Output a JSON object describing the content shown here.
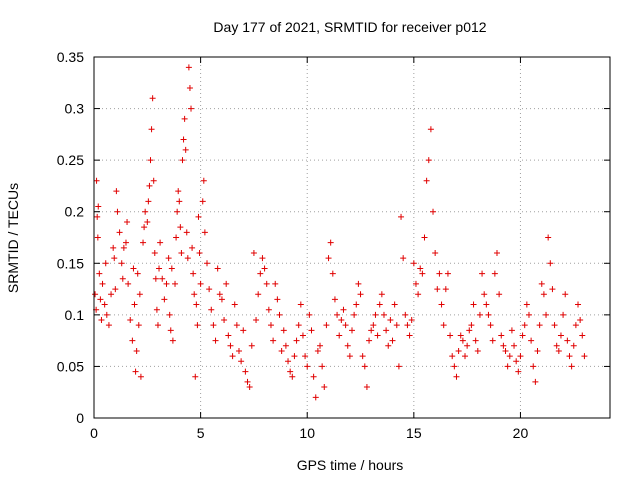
{
  "chart_data": {
    "type": "scatter",
    "title": "Day 177 of 2021, SRMTID for receiver p012",
    "xlabel": "GPS time / hours",
    "ylabel": "SRMTID / TECUs",
    "xlim": [
      0,
      24.2
    ],
    "ylim": [
      0,
      0.35
    ],
    "xticks": [
      0,
      5,
      10,
      15,
      20
    ],
    "xtick_labels": [
      "0",
      "5",
      "10",
      "15",
      "20"
    ],
    "yticks": [
      0,
      0.05,
      0.1,
      0.15,
      0.2,
      0.25,
      0.3,
      0.35
    ],
    "ytick_labels": [
      "0",
      "0.05",
      "0.1",
      "0.15",
      "0.2",
      "0.25",
      "0.3",
      "0.35"
    ],
    "grid": true,
    "marker": "+",
    "color": "#e00000",
    "series": [
      {
        "name": "SRMTID",
        "points": [
          [
            0.05,
            0.12
          ],
          [
            0.1,
            0.105
          ],
          [
            0.12,
            0.23
          ],
          [
            0.15,
            0.195
          ],
          [
            0.18,
            0.175
          ],
          [
            0.2,
            0.205
          ],
          [
            0.25,
            0.14
          ],
          [
            0.3,
            0.115
          ],
          [
            0.35,
            0.095
          ],
          [
            0.4,
            0.13
          ],
          [
            0.5,
            0.11
          ],
          [
            0.55,
            0.15
          ],
          [
            0.6,
            0.1
          ],
          [
            0.7,
            0.09
          ],
          [
            0.8,
            0.12
          ],
          [
            0.9,
            0.165
          ],
          [
            0.95,
            0.155
          ],
          [
            1.0,
            0.125
          ],
          [
            1.05,
            0.22
          ],
          [
            1.1,
            0.2
          ],
          [
            1.2,
            0.18
          ],
          [
            1.3,
            0.15
          ],
          [
            1.35,
            0.135
          ],
          [
            1.4,
            0.165
          ],
          [
            1.5,
            0.17
          ],
          [
            1.55,
            0.19
          ],
          [
            1.6,
            0.13
          ],
          [
            1.7,
            0.095
          ],
          [
            1.8,
            0.075
          ],
          [
            1.85,
            0.145
          ],
          [
            1.9,
            0.11
          ],
          [
            1.95,
            0.045
          ],
          [
            2.0,
            0.065
          ],
          [
            2.05,
            0.14
          ],
          [
            2.1,
            0.09
          ],
          [
            2.15,
            0.12
          ],
          [
            2.2,
            0.04
          ],
          [
            2.3,
            0.17
          ],
          [
            2.35,
            0.185
          ],
          [
            2.4,
            0.2
          ],
          [
            2.5,
            0.19
          ],
          [
            2.55,
            0.21
          ],
          [
            2.6,
            0.225
          ],
          [
            2.65,
            0.25
          ],
          [
            2.7,
            0.28
          ],
          [
            2.75,
            0.31
          ],
          [
            2.8,
            0.23
          ],
          [
            2.85,
            0.16
          ],
          [
            2.9,
            0.135
          ],
          [
            2.95,
            0.105
          ],
          [
            3.0,
            0.09
          ],
          [
            3.05,
            0.145
          ],
          [
            3.1,
            0.17
          ],
          [
            3.2,
            0.135
          ],
          [
            3.3,
            0.115
          ],
          [
            3.4,
            0.13
          ],
          [
            3.5,
            0.155
          ],
          [
            3.55,
            0.1
          ],
          [
            3.6,
            0.085
          ],
          [
            3.65,
            0.145
          ],
          [
            3.7,
            0.075
          ],
          [
            3.8,
            0.13
          ],
          [
            3.85,
            0.175
          ],
          [
            3.9,
            0.2
          ],
          [
            3.95,
            0.22
          ],
          [
            4.0,
            0.21
          ],
          [
            4.05,
            0.185
          ],
          [
            4.1,
            0.16
          ],
          [
            4.15,
            0.25
          ],
          [
            4.2,
            0.27
          ],
          [
            4.25,
            0.29
          ],
          [
            4.3,
            0.26
          ],
          [
            4.35,
            0.18
          ],
          [
            4.4,
            0.155
          ],
          [
            4.45,
            0.34
          ],
          [
            4.5,
            0.32
          ],
          [
            4.55,
            0.3
          ],
          [
            4.6,
            0.165
          ],
          [
            4.65,
            0.14
          ],
          [
            4.7,
            0.12
          ],
          [
            4.75,
            0.04
          ],
          [
            4.8,
            0.11
          ],
          [
            4.85,
            0.09
          ],
          [
            4.9,
            0.195
          ],
          [
            4.95,
            0.16
          ],
          [
            5.0,
            0.13
          ],
          [
            5.1,
            0.21
          ],
          [
            5.15,
            0.23
          ],
          [
            5.2,
            0.18
          ],
          [
            5.3,
            0.15
          ],
          [
            5.4,
            0.125
          ],
          [
            5.5,
            0.105
          ],
          [
            5.6,
            0.09
          ],
          [
            5.7,
            0.075
          ],
          [
            5.8,
            0.145
          ],
          [
            5.9,
            0.12
          ],
          [
            6.0,
            0.115
          ],
          [
            6.1,
            0.095
          ],
          [
            6.2,
            0.13
          ],
          [
            6.3,
            0.08
          ],
          [
            6.4,
            0.07
          ],
          [
            6.5,
            0.06
          ],
          [
            6.6,
            0.11
          ],
          [
            6.7,
            0.09
          ],
          [
            6.8,
            0.065
          ],
          [
            6.9,
            0.055
          ],
          [
            7.0,
            0.085
          ],
          [
            7.1,
            0.045
          ],
          [
            7.2,
            0.035
          ],
          [
            7.3,
            0.03
          ],
          [
            7.4,
            0.07
          ],
          [
            7.5,
            0.16
          ],
          [
            7.6,
            0.095
          ],
          [
            7.7,
            0.12
          ],
          [
            7.8,
            0.14
          ],
          [
            7.9,
            0.155
          ],
          [
            8.0,
            0.145
          ],
          [
            8.1,
            0.13
          ],
          [
            8.2,
            0.105
          ],
          [
            8.3,
            0.09
          ],
          [
            8.4,
            0.075
          ],
          [
            8.5,
            0.13
          ],
          [
            8.6,
            0.115
          ],
          [
            8.7,
            0.1
          ],
          [
            8.8,
            0.065
          ],
          [
            8.9,
            0.085
          ],
          [
            9.0,
            0.07
          ],
          [
            9.1,
            0.055
          ],
          [
            9.2,
            0.045
          ],
          [
            9.3,
            0.04
          ],
          [
            9.4,
            0.06
          ],
          [
            9.5,
            0.075
          ],
          [
            9.6,
            0.09
          ],
          [
            9.7,
            0.11
          ],
          [
            9.8,
            0.08
          ],
          [
            9.9,
            0.06
          ],
          [
            10.0,
            0.05
          ],
          [
            10.1,
            0.1
          ],
          [
            10.2,
            0.085
          ],
          [
            10.3,
            0.04
          ],
          [
            10.4,
            0.02
          ],
          [
            10.5,
            0.065
          ],
          [
            10.6,
            0.07
          ],
          [
            10.7,
            0.05
          ],
          [
            10.8,
            0.03
          ],
          [
            10.9,
            0.09
          ],
          [
            11.0,
            0.155
          ],
          [
            11.1,
            0.17
          ],
          [
            11.2,
            0.14
          ],
          [
            11.3,
            0.115
          ],
          [
            11.4,
            0.1
          ],
          [
            11.5,
            0.08
          ],
          [
            11.6,
            0.095
          ],
          [
            11.7,
            0.105
          ],
          [
            11.8,
            0.09
          ],
          [
            11.9,
            0.07
          ],
          [
            12.0,
            0.06
          ],
          [
            12.1,
            0.085
          ],
          [
            12.2,
            0.1
          ],
          [
            12.3,
            0.11
          ],
          [
            12.4,
            0.13
          ],
          [
            12.5,
            0.12
          ],
          [
            12.6,
            0.06
          ],
          [
            12.7,
            0.05
          ],
          [
            12.8,
            0.03
          ],
          [
            12.9,
            0.075
          ],
          [
            13.0,
            0.085
          ],
          [
            13.1,
            0.09
          ],
          [
            13.2,
            0.1
          ],
          [
            13.3,
            0.08
          ],
          [
            13.4,
            0.11
          ],
          [
            13.5,
            0.12
          ],
          [
            13.6,
            0.1
          ],
          [
            13.7,
            0.085
          ],
          [
            13.8,
            0.07
          ],
          [
            13.9,
            0.095
          ],
          [
            14.0,
            0.075
          ],
          [
            14.1,
            0.11
          ],
          [
            14.2,
            0.09
          ],
          [
            14.3,
            0.05
          ],
          [
            14.4,
            0.195
          ],
          [
            14.5,
            0.155
          ],
          [
            14.6,
            0.1
          ],
          [
            14.7,
            0.09
          ],
          [
            14.8,
            0.08
          ],
          [
            14.9,
            0.095
          ],
          [
            15.0,
            0.15
          ],
          [
            15.1,
            0.13
          ],
          [
            15.2,
            0.12
          ],
          [
            15.3,
            0.145
          ],
          [
            15.4,
            0.14
          ],
          [
            15.5,
            0.175
          ],
          [
            15.6,
            0.23
          ],
          [
            15.7,
            0.25
          ],
          [
            15.8,
            0.28
          ],
          [
            15.9,
            0.2
          ],
          [
            16.0,
            0.16
          ],
          [
            16.1,
            0.125
          ],
          [
            16.2,
            0.14
          ],
          [
            16.3,
            0.11
          ],
          [
            16.4,
            0.09
          ],
          [
            16.5,
            0.125
          ],
          [
            16.6,
            0.14
          ],
          [
            16.7,
            0.08
          ],
          [
            16.8,
            0.06
          ],
          [
            16.9,
            0.05
          ],
          [
            17.0,
            0.04
          ],
          [
            17.1,
            0.065
          ],
          [
            17.2,
            0.08
          ],
          [
            17.3,
            0.075
          ],
          [
            17.4,
            0.06
          ],
          [
            17.5,
            0.07
          ],
          [
            17.6,
            0.085
          ],
          [
            17.7,
            0.09
          ],
          [
            17.8,
            0.11
          ],
          [
            17.9,
            0.075
          ],
          [
            18.0,
            0.065
          ],
          [
            18.1,
            0.1
          ],
          [
            18.2,
            0.14
          ],
          [
            18.3,
            0.12
          ],
          [
            18.4,
            0.11
          ],
          [
            18.5,
            0.1
          ],
          [
            18.6,
            0.09
          ],
          [
            18.7,
            0.075
          ],
          [
            18.8,
            0.14
          ],
          [
            18.9,
            0.16
          ],
          [
            19.0,
            0.12
          ],
          [
            19.1,
            0.08
          ],
          [
            19.2,
            0.07
          ],
          [
            19.3,
            0.065
          ],
          [
            19.4,
            0.05
          ],
          [
            19.5,
            0.06
          ],
          [
            19.6,
            0.085
          ],
          [
            19.7,
            0.07
          ],
          [
            19.8,
            0.055
          ],
          [
            19.9,
            0.045
          ],
          [
            20.0,
            0.06
          ],
          [
            20.1,
            0.08
          ],
          [
            20.2,
            0.09
          ],
          [
            20.3,
            0.11
          ],
          [
            20.4,
            0.1
          ],
          [
            20.5,
            0.075
          ],
          [
            20.6,
            0.05
          ],
          [
            20.7,
            0.035
          ],
          [
            20.8,
            0.065
          ],
          [
            20.9,
            0.09
          ],
          [
            21.0,
            0.13
          ],
          [
            21.1,
            0.12
          ],
          [
            21.2,
            0.1
          ],
          [
            21.3,
            0.175
          ],
          [
            21.4,
            0.15
          ],
          [
            21.5,
            0.125
          ],
          [
            21.6,
            0.09
          ],
          [
            21.7,
            0.07
          ],
          [
            21.8,
            0.065
          ],
          [
            21.9,
            0.08
          ],
          [
            22.0,
            0.1
          ],
          [
            22.1,
            0.12
          ],
          [
            22.2,
            0.075
          ],
          [
            22.3,
            0.06
          ],
          [
            22.4,
            0.05
          ],
          [
            22.5,
            0.07
          ],
          [
            22.6,
            0.09
          ],
          [
            22.7,
            0.11
          ],
          [
            22.8,
            0.095
          ],
          [
            22.9,
            0.08
          ],
          [
            23.0,
            0.06
          ]
        ]
      }
    ]
  }
}
